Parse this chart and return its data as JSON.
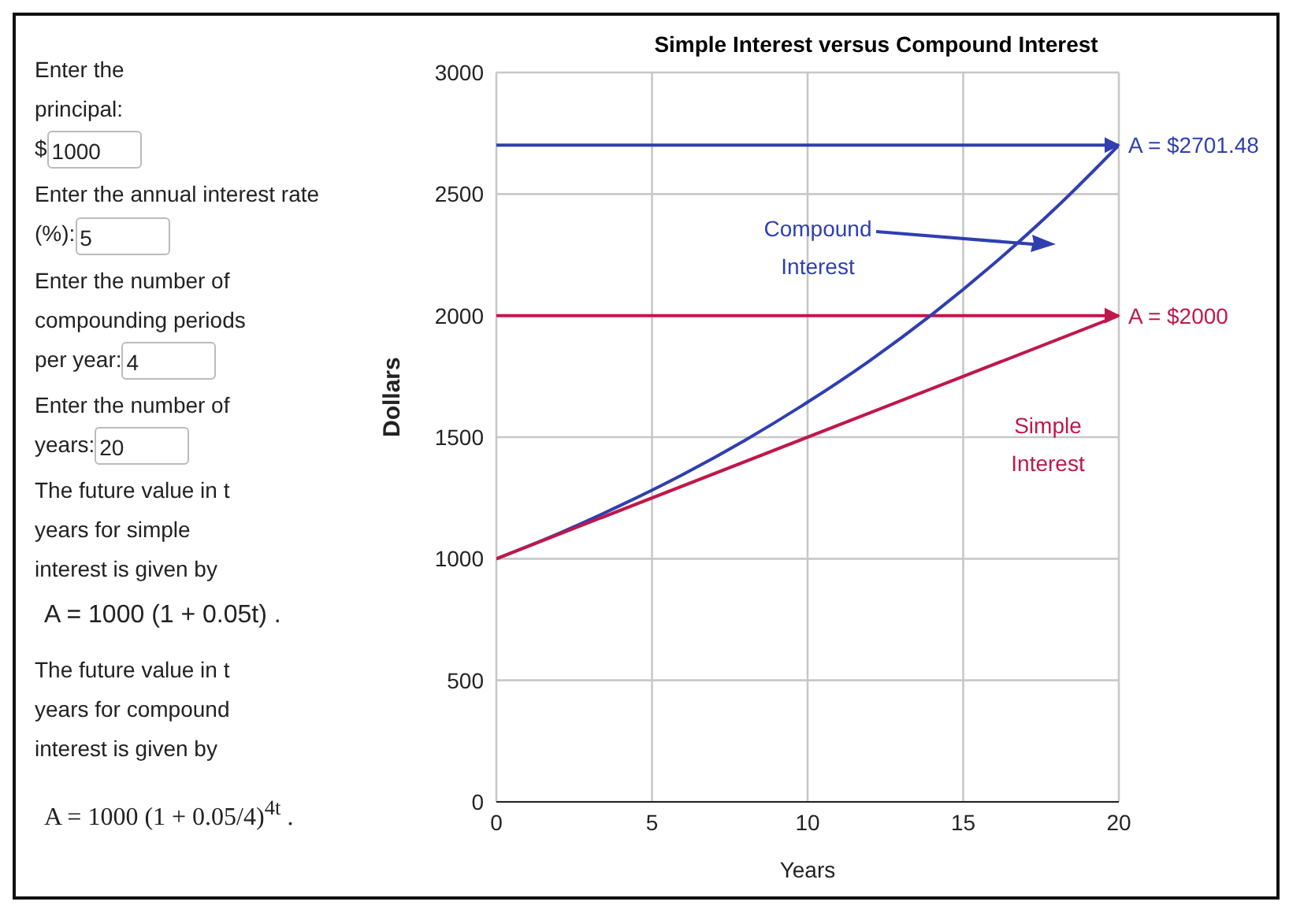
{
  "chart_data": {
    "type": "line",
    "title": "Simple Interest versus Compound Interest",
    "xlabel": "Years",
    "ylabel": "Dollars",
    "xlim": [
      0,
      20
    ],
    "xticks": [
      0,
      5,
      10,
      15,
      20
    ],
    "ylim": [
      0,
      3000
    ],
    "yticks": [
      0,
      500,
      1000,
      1500,
      2000,
      2500,
      3000
    ],
    "grid": true,
    "series": [
      {
        "color": "#2f3fb0",
        "x": [
          0,
          2,
          4,
          6,
          8,
          10,
          12,
          14,
          16,
          18,
          20
        ],
        "values": [
          1000,
          1104,
          1220,
          1347,
          1488,
          1644,
          1815,
          2005,
          2215,
          2446,
          2701
        ]
      },
      {
        "color": "#c0174a",
        "x": [
          0,
          20
        ],
        "values": [
          1000,
          2000
        ]
      }
    ],
    "ref_lines": [
      {
        "axis": "y",
        "value": 2701.48,
        "label": "A = $2701.48",
        "color": "#2f3fb0"
      },
      {
        "axis": "y",
        "value": 2000,
        "label": "A = $2000",
        "color": "#c0174a"
      }
    ],
    "annotations": [
      "Compound Interest",
      "Simple Interest",
      "Enter the principal: $",
      "1000",
      "Enter the annual interest rate (%):",
      "5",
      "Enter the number of compounding periods per year:",
      "4",
      "Enter the number of years:",
      "20",
      "The future value in t years for simple interest is given by",
      "A = 1000 (1 + 0.05t) .",
      "The future value in t years for compound interest is given by",
      "A = 1000 (1 + 0.05/4)$^{4t}$ ."
    ]
  }
}
